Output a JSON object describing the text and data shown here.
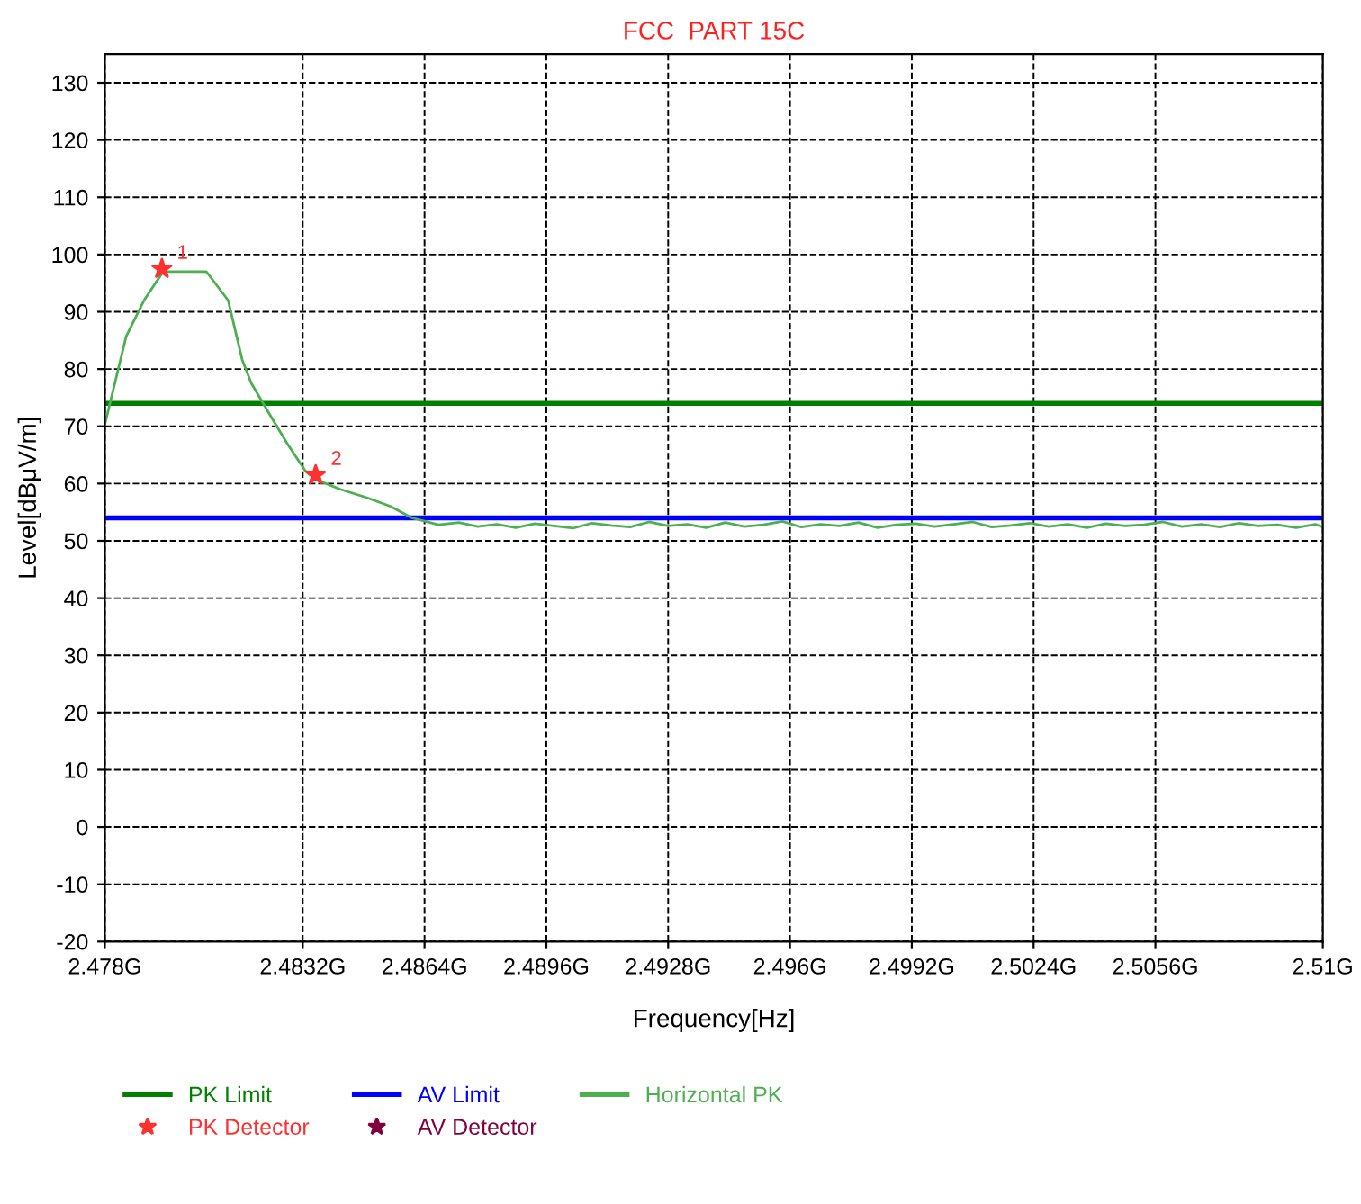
{
  "chart_data": {
    "type": "line",
    "title": "FCC  PART 15C",
    "xlabel": "Frequency[Hz]",
    "ylabel": "Level[dBμV/m]",
    "xlim": [
      2.478,
      2.51
    ],
    "ylim": [
      -20,
      135
    ],
    "xticks": [
      {
        "value": 2.478,
        "label": "2.478G"
      },
      {
        "value": 2.4832,
        "label": "2.4832G"
      },
      {
        "value": 2.4864,
        "label": "2.4864G"
      },
      {
        "value": 2.4896,
        "label": "2.4896G"
      },
      {
        "value": 2.4928,
        "label": "2.4928G"
      },
      {
        "value": 2.496,
        "label": "2.496G"
      },
      {
        "value": 2.4992,
        "label": "2.4992G"
      },
      {
        "value": 2.5024,
        "label": "2.5024G"
      },
      {
        "value": 2.5056,
        "label": "2.5056G"
      },
      {
        "value": 2.51,
        "label": "2.51G"
      }
    ],
    "yticks": [
      -20,
      -10,
      0,
      10,
      20,
      30,
      40,
      50,
      60,
      70,
      80,
      90,
      100,
      110,
      120,
      130
    ],
    "grid": true,
    "legend": "bottom",
    "series": [
      {
        "name": "PK Limit",
        "color": "#008000",
        "x": [
          2.478,
          2.51
        ],
        "values": [
          74,
          74
        ]
      },
      {
        "name": "AV Limit",
        "color": "#0000ff",
        "x": [
          2.478,
          2.51
        ],
        "values": [
          54,
          54
        ]
      },
      {
        "name": "Horizontal PK",
        "color": "#4caf50",
        "x": [
          2.478,
          2.47856,
          2.47903,
          2.4795,
          2.4796,
          2.48067,
          2.48124,
          2.48161,
          2.48185,
          2.48232,
          2.48279,
          2.48326,
          2.48354,
          2.48419,
          2.4849,
          2.48551,
          2.48607,
          2.48677,
          2.4873,
          2.4878,
          2.4883,
          2.4888,
          2.4893,
          2.4898,
          2.4903,
          2.4908,
          2.4913,
          2.4918,
          2.4923,
          2.4928,
          2.4933,
          2.4938,
          2.4943,
          2.4948,
          2.4953,
          2.4958,
          2.4963,
          2.4968,
          2.4973,
          2.4978,
          2.4983,
          2.4988,
          2.4993,
          2.4998,
          2.5003,
          2.5008,
          2.5013,
          2.5018,
          2.5023,
          2.5028,
          2.5033,
          2.5038,
          2.5043,
          2.5048,
          2.5053,
          2.5058,
          2.5063,
          2.5068,
          2.5073,
          2.5078,
          2.5083,
          2.5088,
          2.5093,
          2.5098,
          2.51
        ],
        "values": [
          70.3,
          85.7,
          92,
          96.7,
          97,
          97,
          92,
          81.6,
          77.5,
          72.2,
          67,
          62.3,
          60.7,
          59,
          57.5,
          56,
          54,
          52.8,
          53.2,
          52.5,
          52.9,
          52.3,
          53,
          52.6,
          52.2,
          53.1,
          52.7,
          52.4,
          53.3,
          52.6,
          52.9,
          52.3,
          53.2,
          52.5,
          52.8,
          53.4,
          52.4,
          52.9,
          52.6,
          53.2,
          52.3,
          52.8,
          53,
          52.5,
          52.9,
          53.3,
          52.4,
          52.7,
          53.1,
          52.5,
          52.9,
          52.3,
          53,
          52.6,
          52.8,
          53.3,
          52.5,
          52.9,
          52.4,
          53.1,
          52.6,
          52.8,
          52.3,
          52.9,
          52.4
        ]
      },
      {
        "name": "PK Detector",
        "type": "scatter",
        "marker": "star",
        "color": "#ff3030",
        "x": [
          2.4795,
          2.48354
        ],
        "values": [
          97.5,
          61.5
        ]
      },
      {
        "name": "AV Detector",
        "type": "scatter",
        "marker": "star",
        "color": "#800040"
      }
    ],
    "annotations": [
      {
        "text": "1",
        "x": 2.4795,
        "y": 97.5
      },
      {
        "text": "2",
        "x": 2.48354,
        "y": 61.5
      }
    ]
  }
}
